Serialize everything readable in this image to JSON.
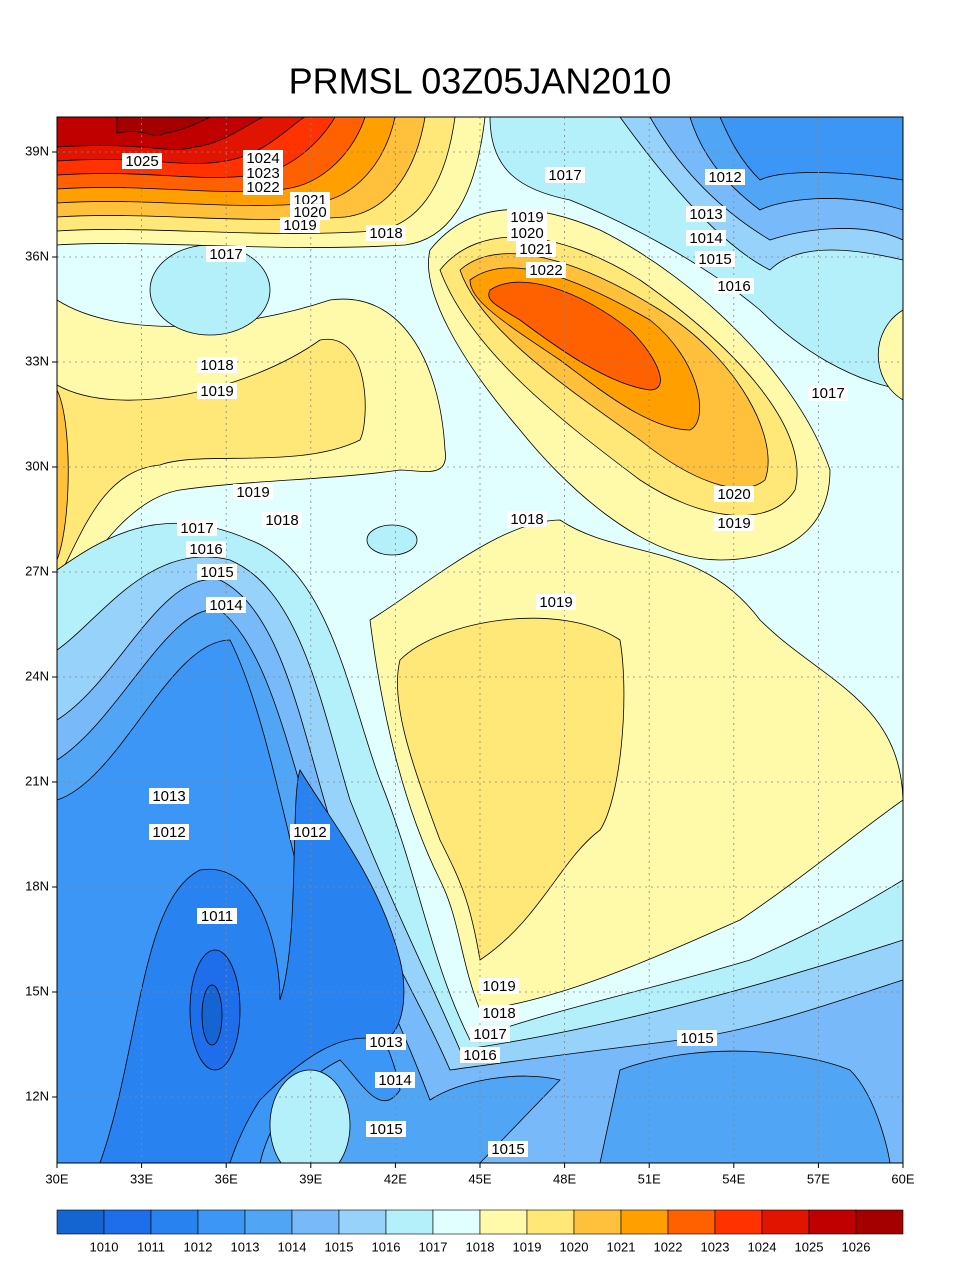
{
  "title": "PRMSL 03Z05JAN2010",
  "map": {
    "x_ticks": [
      "30E",
      "33E",
      "36E",
      "39E",
      "42E",
      "45E",
      "48E",
      "51E",
      "54E",
      "57E",
      "60E"
    ],
    "y_ticks": [
      "39N",
      "36N",
      "33N",
      "30N",
      "27N",
      "24N",
      "21N",
      "18N",
      "15N",
      "12N"
    ],
    "contour_labels": [
      1025,
      1024,
      1023,
      1022,
      1021,
      1020,
      1019,
      1018,
      1017,
      1017,
      1012,
      1019,
      1020,
      1021,
      1022,
      1013,
      1014,
      1015,
      1016,
      1018,
      1019,
      1017,
      1019,
      1020,
      1018,
      1018,
      1019,
      1017,
      1016,
      1015,
      1014,
      1019,
      1013,
      1012,
      1012,
      1011,
      1019,
      1018,
      1017,
      1013,
      1015,
      1016,
      1014,
      1015,
      1015
    ]
  },
  "colorbar": {
    "levels": [
      1010,
      1011,
      1012,
      1013,
      1014,
      1015,
      1016,
      1017,
      1018,
      1019,
      1020,
      1021,
      1022,
      1023,
      1024,
      1025,
      1026
    ],
    "colors": [
      "#1464d2",
      "#1e6eeb",
      "#2882f0",
      "#3c96f5",
      "#50a5f5",
      "#78b9fa",
      "#96d2fa",
      "#b4f0fa",
      "#e1ffff",
      "#fffaaa",
      "#ffe878",
      "#ffc03c",
      "#ffa000",
      "#ff6000",
      "#ff3200",
      "#e11400",
      "#c00000",
      "#a50000"
    ]
  }
}
